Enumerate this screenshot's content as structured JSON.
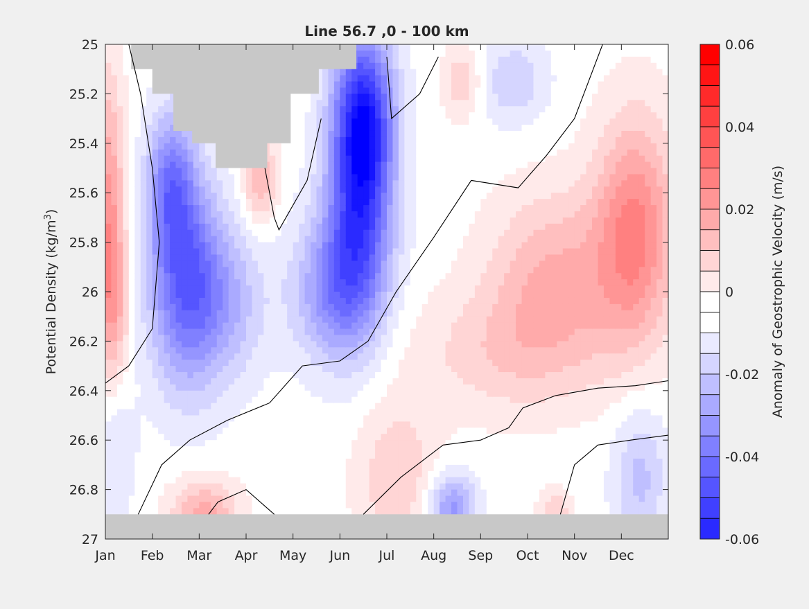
{
  "chart_data": {
    "type": "heatmap",
    "title": "Line 56.7 ,0 - 100 km",
    "ylabel_main": "Potential Density (kg/m",
    "ylabel_sup": "3",
    "ylabel_close": ")",
    "xlabel": "",
    "x_tick_labels": [
      "Jan",
      "Feb",
      "Mar",
      "Apr",
      "May",
      "Jun",
      "Jul",
      "Aug",
      "Sep",
      "Oct",
      "Nov",
      "Dec"
    ],
    "y_ticks": [
      25,
      25.2,
      25.4,
      25.6,
      25.8,
      26,
      26.2,
      26.4,
      26.6,
      26.8,
      27
    ],
    "y_tick_labels": [
      "25",
      "25.2",
      "25.4",
      "25.6",
      "25.8",
      "26",
      "26.2",
      "26.4",
      "26.6",
      "26.8",
      "27"
    ],
    "ylim": [
      25,
      27
    ],
    "y_reversed": true,
    "x_range_months": [
      1,
      13
    ],
    "colorbar": {
      "label": "Anomaly of Geostrophic Velocity (m/s)",
      "range": [
        -0.06,
        0.06
      ],
      "step": 0.005,
      "tick_values": [
        0.06,
        0.04,
        0.02,
        0,
        -0.02,
        -0.04,
        -0.06
      ],
      "tick_labels": [
        "0.06",
        "0.04",
        "0.02",
        "0",
        "-0.02",
        "-0.04",
        "-0.06"
      ],
      "negative_color": "#0000ff",
      "positive_color": "#ff0000",
      "zero_color": "#ffffff"
    },
    "missing_color": "#c8c8c8",
    "features": [
      {
        "month": 1.05,
        "density": 25.7,
        "value": 0.025,
        "sm": 0.25,
        "sd": 0.4
      },
      {
        "month": 1.2,
        "density": 26.05,
        "value": 0.012,
        "sm": 0.25,
        "sd": 0.2
      },
      {
        "month": 2.7,
        "density": 25.95,
        "value": -0.035,
        "sm": 0.55,
        "sd": 0.3
      },
      {
        "month": 2.4,
        "density": 25.55,
        "value": -0.025,
        "sm": 0.35,
        "sd": 0.2
      },
      {
        "month": 3.6,
        "density": 26.05,
        "value": -0.015,
        "sm": 0.6,
        "sd": 0.22
      },
      {
        "month": 4.3,
        "density": 25.55,
        "value": 0.018,
        "sm": 0.25,
        "sd": 0.12
      },
      {
        "month": 6.5,
        "density": 25.3,
        "value": -0.05,
        "sm": 0.45,
        "sd": 0.25
      },
      {
        "month": 6.4,
        "density": 25.75,
        "value": -0.035,
        "sm": 0.5,
        "sd": 0.3
      },
      {
        "month": 5.8,
        "density": 26.0,
        "value": -0.022,
        "sm": 0.6,
        "sd": 0.2
      },
      {
        "month": 8.6,
        "density": 25.15,
        "value": 0.012,
        "sm": 0.3,
        "sd": 0.1
      },
      {
        "month": 9.7,
        "density": 25.15,
        "value": -0.012,
        "sm": 0.5,
        "sd": 0.12
      },
      {
        "month": 12.3,
        "density": 25.75,
        "value": 0.028,
        "sm": 0.6,
        "sd": 0.32
      },
      {
        "month": 10.6,
        "density": 25.95,
        "value": 0.018,
        "sm": 1.0,
        "sd": 0.25
      },
      {
        "month": 9.5,
        "density": 26.25,
        "value": 0.01,
        "sm": 1.4,
        "sd": 0.18
      },
      {
        "month": 7.2,
        "density": 26.75,
        "value": 0.012,
        "sm": 0.6,
        "sd": 0.22
      },
      {
        "month": 3.1,
        "density": 26.9,
        "value": 0.02,
        "sm": 0.5,
        "sd": 0.1
      },
      {
        "month": 8.4,
        "density": 26.88,
        "value": -0.025,
        "sm": 0.35,
        "sd": 0.1
      },
      {
        "month": 10.6,
        "density": 26.9,
        "value": 0.012,
        "sm": 0.25,
        "sd": 0.07
      },
      {
        "month": 12.4,
        "density": 26.75,
        "value": -0.014,
        "sm": 0.4,
        "sd": 0.2
      },
      {
        "month": 1.2,
        "density": 26.65,
        "value": -0.008,
        "sm": 0.3,
        "sd": 0.2
      }
    ],
    "masked_regions": [
      {
        "type": "outcrop_top",
        "months": [
          1.55,
          2.0,
          2.0,
          2.45,
          2.45,
          2.85,
          2.85,
          3.35,
          3.35,
          4.45,
          4.45,
          4.95,
          4.95,
          5.55,
          5.55,
          6.35
        ],
        "densities": [
          25.1,
          25.1,
          25.2,
          25.2,
          25.35,
          25.35,
          25.4,
          25.4,
          25.5,
          25.5,
          25.4,
          25.4,
          25.2,
          25.2,
          25.1,
          25.1
        ]
      },
      {
        "type": "bottom",
        "density_min": 26.9
      }
    ],
    "zero_contours": [
      [
        [
          1.0,
          26.37
        ],
        [
          1.5,
          26.3
        ],
        [
          2.0,
          26.15
        ],
        [
          2.15,
          25.8
        ],
        [
          2.0,
          25.5
        ],
        [
          1.75,
          25.2
        ],
        [
          1.5,
          25.0
        ]
      ],
      [
        [
          1.7,
          26.9
        ],
        [
          2.2,
          26.7
        ],
        [
          2.8,
          26.6
        ],
        [
          3.6,
          26.52
        ],
        [
          4.5,
          26.45
        ],
        [
          5.2,
          26.3
        ],
        [
          6.0,
          26.28
        ],
        [
          6.6,
          26.2
        ],
        [
          7.2,
          26.0
        ],
        [
          8.0,
          25.78
        ],
        [
          8.8,
          25.55
        ],
        [
          9.8,
          25.58
        ],
        [
          10.4,
          25.45
        ],
        [
          11.0,
          25.3
        ],
        [
          11.6,
          25.0
        ]
      ],
      [
        [
          4.4,
          25.5
        ],
        [
          4.6,
          25.7
        ],
        [
          4.7,
          25.75
        ],
        [
          5.3,
          25.55
        ],
        [
          5.6,
          25.3
        ]
      ],
      [
        [
          7.0,
          25.05
        ],
        [
          7.1,
          25.3
        ],
        [
          7.7,
          25.2
        ],
        [
          8.1,
          25.05
        ]
      ],
      [
        [
          10.7,
          26.9
        ],
        [
          11.0,
          26.7
        ],
        [
          11.5,
          26.62
        ],
        [
          12.2,
          26.6
        ],
        [
          13.0,
          26.58
        ]
      ],
      [
        [
          3.2,
          26.9
        ],
        [
          3.4,
          26.85
        ],
        [
          4.0,
          26.8
        ],
        [
          4.6,
          26.9
        ]
      ],
      [
        [
          6.5,
          26.9
        ],
        [
          7.3,
          26.75
        ],
        [
          8.2,
          26.62
        ],
        [
          9.0,
          26.6
        ],
        [
          9.6,
          26.55
        ],
        [
          9.9,
          26.47
        ],
        [
          10.6,
          26.42
        ],
        [
          11.5,
          26.39
        ],
        [
          12.3,
          26.38
        ],
        [
          13.0,
          26.36
        ]
      ]
    ]
  }
}
